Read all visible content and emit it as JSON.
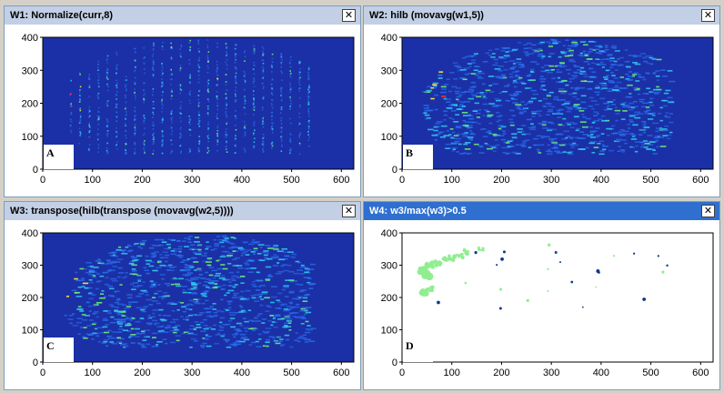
{
  "colors": {
    "heatmap_bg": "#1a2ea3",
    "active_title": "#2f6fd0",
    "inactive_title": "#c2cfe5",
    "mask_fill": "#90ee90",
    "mask_dot": "#0a3a8a"
  },
  "windows": [
    {
      "id": "w1",
      "title": "W1: Normalize(curr,8)",
      "close_label": "✕",
      "badge": "A",
      "active": false,
      "kind": "heatmap",
      "x_ticks": [
        "0",
        "100",
        "200",
        "300",
        "400",
        "500",
        "600"
      ],
      "y_ticks": [
        "0",
        "100",
        "200",
        "300",
        "400"
      ]
    },
    {
      "id": "w2",
      "title": "W2: hilb (movavg(w1,5))",
      "close_label": "✕",
      "badge": "B",
      "active": false,
      "kind": "heatmap",
      "x_ticks": [
        "0",
        "100",
        "200",
        "300",
        "400",
        "500",
        "600"
      ],
      "y_ticks": [
        "0",
        "100",
        "200",
        "300",
        "400"
      ]
    },
    {
      "id": "w3",
      "title": "W3: transpose(hilb(transpose (movavg(w2,5))))",
      "close_label": "✕",
      "badge": "C",
      "active": false,
      "kind": "heatmap",
      "x_ticks": [
        "0",
        "100",
        "200",
        "300",
        "400",
        "500",
        "600"
      ],
      "y_ticks": [
        "0",
        "100",
        "200",
        "300",
        "400"
      ]
    },
    {
      "id": "w4",
      "title": "W4: w3/max(w3)>0.5",
      "close_label": "✕",
      "badge": "D",
      "active": true,
      "kind": "mask",
      "x_ticks": [
        "0",
        "100",
        "200",
        "300",
        "400",
        "500",
        "600"
      ],
      "y_ticks": [
        "0",
        "100",
        "200",
        "300",
        "400"
      ]
    }
  ]
}
